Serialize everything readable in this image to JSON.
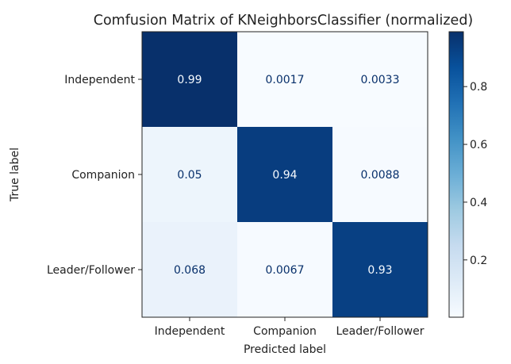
{
  "chart_data": {
    "type": "heatmap",
    "title": "Comfusion Matrix of KNeighborsClassifier (normalized)",
    "xlabel": "Predicted label",
    "ylabel": "True label",
    "x_categories": [
      "Independent",
      "Companion",
      "Leader/Follower"
    ],
    "y_categories": [
      "Independent",
      "Companion",
      "Leader/Follower"
    ],
    "values": [
      [
        0.99,
        0.0017,
        0.0033
      ],
      [
        0.05,
        0.94,
        0.0088
      ],
      [
        0.068,
        0.0067,
        0.93
      ]
    ],
    "cell_labels": [
      [
        "0.99",
        "0.0017",
        "0.0033"
      ],
      [
        "0.05",
        "0.94",
        "0.0088"
      ],
      [
        "0.068",
        "0.0067",
        "0.93"
      ]
    ],
    "colormap": "Blues",
    "colorbar": {
      "range": [
        0.0017,
        0.99
      ],
      "ticks": [
        0.2,
        0.4,
        0.6,
        0.8
      ],
      "tick_labels": [
        "0.2",
        "0.4",
        "0.6",
        "0.8"
      ]
    },
    "colors": {
      "low": "#f7fbff",
      "high": "#08306b",
      "text_dark_cell": "#f7fbff",
      "text_light_cell": "#08306b"
    }
  }
}
